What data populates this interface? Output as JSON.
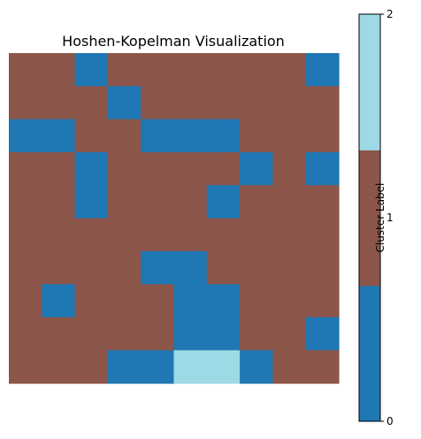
{
  "chart_data": {
    "type": "heatmap",
    "title": "Hoshen-Kopelman Visualization",
    "rows": 10,
    "cols": 10,
    "values": [
      [
        1,
        1,
        0,
        1,
        1,
        1,
        1,
        1,
        1,
        0
      ],
      [
        1,
        1,
        1,
        0,
        1,
        1,
        1,
        1,
        1,
        1
      ],
      [
        0,
        0,
        1,
        1,
        0,
        0,
        0,
        1,
        1,
        1
      ],
      [
        1,
        1,
        0,
        1,
        1,
        1,
        1,
        0,
        1,
        0
      ],
      [
        1,
        1,
        0,
        1,
        1,
        1,
        0,
        1,
        1,
        1
      ],
      [
        1,
        1,
        1,
        1,
        1,
        1,
        1,
        1,
        1,
        1
      ],
      [
        1,
        1,
        1,
        1,
        0,
        0,
        1,
        1,
        1,
        1
      ],
      [
        1,
        0,
        1,
        1,
        1,
        0,
        0,
        1,
        1,
        1
      ],
      [
        1,
        1,
        1,
        1,
        1,
        0,
        0,
        1,
        1,
        0
      ],
      [
        1,
        1,
        1,
        0,
        0,
        2,
        2,
        0,
        1,
        1
      ]
    ],
    "axes_visible": false,
    "colorbar": {
      "label": "Cluster Label",
      "ticks": [
        "0",
        "1",
        "2"
      ],
      "range": [
        0,
        2
      ],
      "segments": [
        {
          "from": 0,
          "to": 0.667,
          "color": "#1f77b4"
        },
        {
          "from": 0.667,
          "to": 1.333,
          "color": "#8c564b"
        },
        {
          "from": 1.333,
          "to": 2,
          "color": "#9edae5"
        }
      ]
    },
    "colors": {
      "0": "#1f77b4",
      "1": "#8c564b",
      "2": "#9edae5"
    }
  }
}
